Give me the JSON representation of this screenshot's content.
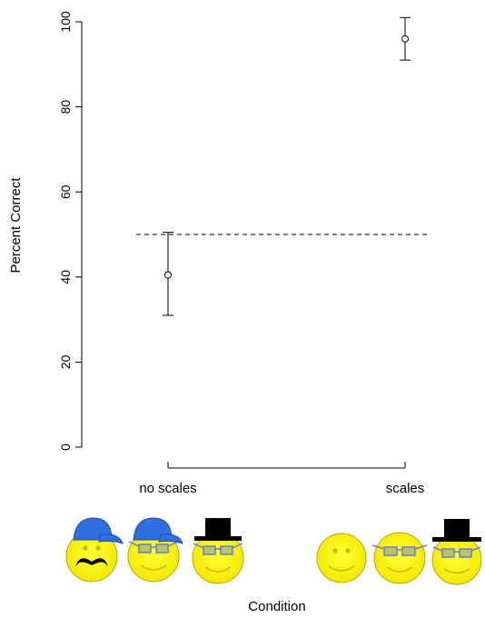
{
  "chart_data": {
    "type": "scatter",
    "title": "",
    "xlabel": "Condition",
    "ylabel": "Percent Correct",
    "ylim": [
      0,
      100
    ],
    "yticks": [
      0,
      20,
      40,
      60,
      80,
      100
    ],
    "categories": [
      "no scales",
      "scales"
    ],
    "points": [
      {
        "category": "no scales",
        "mean": 40.5,
        "lower": 31,
        "upper": 50.5
      },
      {
        "category": "scales",
        "mean": 96,
        "lower": 91,
        "upper": 101
      }
    ],
    "reference_line": {
      "y": 50,
      "style": "dashed"
    },
    "grid": false,
    "legend": "none"
  },
  "condition_pictures": {
    "no_scales": [
      "smiley-mustache-cap-icon",
      "smiley-glasses-cap-icon",
      "smiley-glasses-tophat-icon"
    ],
    "scales": [
      "smiley-plain-icon",
      "smiley-glasses-icon",
      "smiley-glasses-tophat-icon"
    ]
  }
}
